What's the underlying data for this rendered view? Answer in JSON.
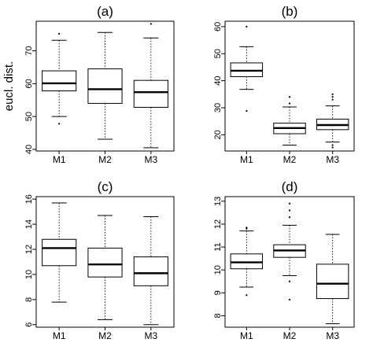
{
  "chart_data": [
    {
      "type": "boxplot",
      "title": "(a)",
      "ylabel": "eucl. dist.",
      "categories": [
        "M1",
        "M2",
        "M3"
      ],
      "ylim": [
        39.5,
        79
      ],
      "yticks": [
        40,
        50,
        60,
        70
      ],
      "boxes": [
        {
          "whisker_low": 50.0,
          "q1": 57.8,
          "median": 60.1,
          "q3": 63.9,
          "whisker_high": 73.2,
          "outliers": [
            47.8,
            75.2
          ]
        },
        {
          "whisker_low": 43.1,
          "q1": 54.0,
          "median": 58.3,
          "q3": 64.5,
          "whisker_high": 75.6,
          "outliers": []
        },
        {
          "whisker_low": 40.5,
          "q1": 52.8,
          "median": 57.4,
          "q3": 61.0,
          "whisker_high": 73.9,
          "outliers": [
            78.2
          ]
        }
      ]
    },
    {
      "type": "boxplot",
      "title": "(b)",
      "ylabel": "",
      "categories": [
        "M1",
        "M2",
        "M3"
      ],
      "ylim": [
        14,
        62
      ],
      "yticks": [
        20,
        30,
        40,
        50,
        60
      ],
      "boxes": [
        {
          "whisker_low": 36.8,
          "q1": 41.5,
          "median": 43.7,
          "q3": 46.6,
          "whisker_high": 52.6,
          "outliers": [
            28.8,
            60.0
          ]
        },
        {
          "whisker_low": 16.2,
          "q1": 20.4,
          "median": 22.5,
          "q3": 24.3,
          "whisker_high": 30.3,
          "outliers": [
            31.6,
            34.0
          ]
        },
        {
          "whisker_low": 17.3,
          "q1": 21.9,
          "median": 23.6,
          "q3": 25.8,
          "whisker_high": 30.7,
          "outliers": [
            15.3,
            16.2,
            33.0,
            34.0,
            35.0
          ]
        }
      ]
    },
    {
      "type": "boxplot",
      "title": "(c)",
      "ylabel": "",
      "categories": [
        "M1",
        "M2",
        "M3"
      ],
      "ylim": [
        5.8,
        16.2
      ],
      "yticks": [
        6,
        8,
        10,
        12,
        14,
        16
      ],
      "boxes": [
        {
          "whisker_low": 7.8,
          "q1": 10.7,
          "median": 12.1,
          "q3": 12.8,
          "whisker_high": 15.7,
          "outliers": []
        },
        {
          "whisker_low": 6.4,
          "q1": 9.8,
          "median": 10.8,
          "q3": 12.1,
          "whisker_high": 14.7,
          "outliers": []
        },
        {
          "whisker_low": 6.0,
          "q1": 9.1,
          "median": 10.1,
          "q3": 11.4,
          "whisker_high": 14.6,
          "outliers": []
        }
      ]
    },
    {
      "type": "boxplot",
      "title": "(d)",
      "ylabel": "",
      "categories": [
        "M1",
        "M2",
        "M3"
      ],
      "ylim": [
        7.5,
        13.2
      ],
      "yticks": [
        8,
        9,
        10,
        11,
        12,
        13
      ],
      "boxes": [
        {
          "whisker_low": 9.25,
          "q1": 10.05,
          "median": 10.33,
          "q3": 10.7,
          "whisker_high": 11.7,
          "outliers": [
            8.9,
            11.8,
            11.85
          ]
        },
        {
          "whisker_low": 9.75,
          "q1": 10.55,
          "median": 10.85,
          "q3": 11.1,
          "whisker_high": 11.95,
          "outliers": [
            9.5,
            8.7,
            12.3,
            12.6,
            12.9
          ]
        },
        {
          "whisker_low": 7.65,
          "q1": 8.75,
          "median": 9.4,
          "q3": 10.25,
          "whisker_high": 11.55,
          "outliers": []
        }
      ]
    }
  ]
}
